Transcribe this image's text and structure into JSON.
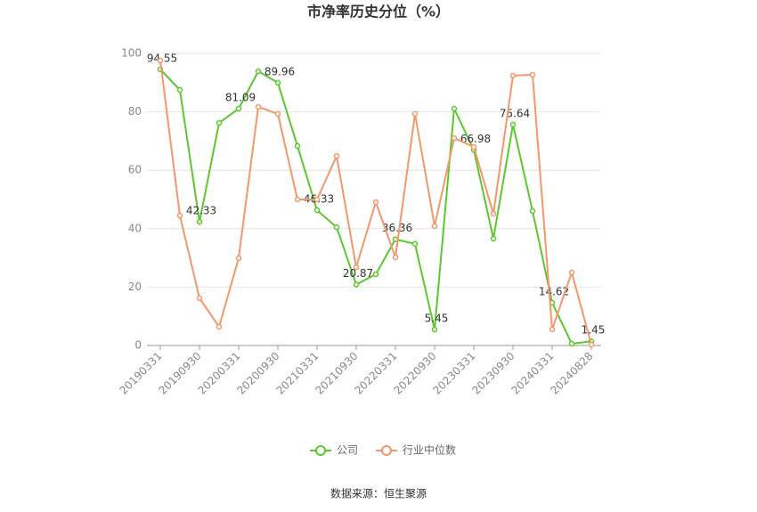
{
  "chart_data": {
    "type": "line",
    "title": "市净率历史分位（%）",
    "source": "数据来源：恒生聚源",
    "categories": [
      "20190331",
      null,
      "20190930",
      null,
      "20200331",
      null,
      "20200930",
      null,
      "20210331",
      null,
      "20210930",
      null,
      "20220331",
      null,
      "20220930",
      null,
      "20230331",
      null,
      "20230930",
      null,
      "20240331",
      null,
      "20240828"
    ],
    "ylim": [
      0,
      100
    ],
    "yticks": [
      0,
      20,
      40,
      60,
      80,
      100
    ],
    "grid": true,
    "legend": "bottom",
    "series": [
      {
        "name": "公司",
        "color": "#5cc830",
        "values": [
          94.55,
          87.5,
          42.33,
          76.2,
          81.09,
          93.9,
          89.96,
          68.3,
          46.33,
          40.5,
          20.87,
          24.4,
          36.36,
          34.8,
          5.45,
          81.1,
          66.98,
          36.6,
          75.64,
          46.0,
          14.62,
          0.6,
          1.45
        ],
        "value_labels": [
          "94.55",
          null,
          "42.33",
          null,
          "81.09",
          null,
          "89.96",
          null,
          "46.33",
          null,
          "20.87",
          null,
          "36.36",
          null,
          "5.45",
          null,
          "66.98",
          null,
          "75.64",
          null,
          "14.62",
          null,
          "1.45"
        ]
      },
      {
        "name": "行业中位数",
        "color": "#f4976a",
        "values": [
          97.6,
          44.5,
          16.2,
          6.4,
          29.9,
          81.7,
          79.3,
          50.0,
          50.0,
          64.9,
          26.8,
          49.1,
          30.2,
          79.3,
          40.9,
          71.0,
          68.0,
          45.1,
          92.4,
          92.7,
          5.5,
          25.0,
          0.3
        ]
      }
    ]
  }
}
